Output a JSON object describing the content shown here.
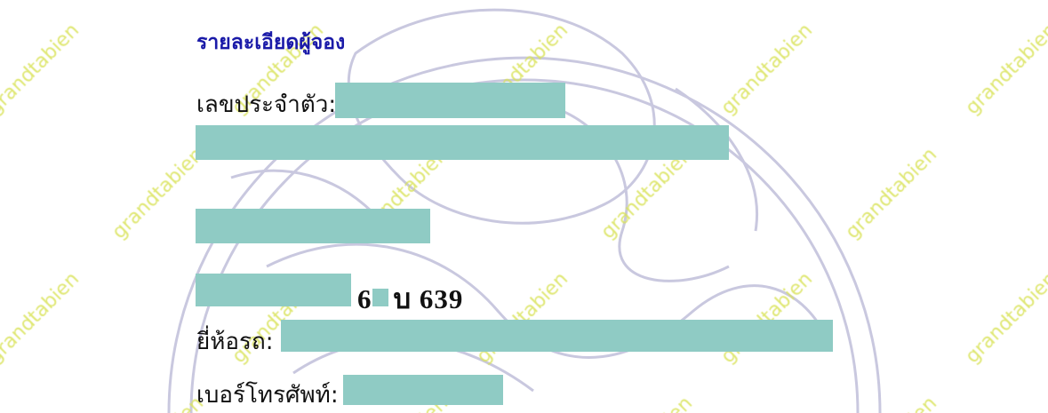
{
  "document": {
    "title": "รายละเอียดผู้จอง",
    "fields": {
      "id_label": "เลขประจำตัว:",
      "plate_visible": "6",
      "plate_rest": "บ 639",
      "brand_label": "ยี่ห้อรถ:",
      "phone_label": "เบอร์โทรศัพท์:"
    },
    "redaction_color": "#8fcbc4",
    "title_color": "#1a1aa8"
  },
  "watermark": {
    "text": "grandtabien",
    "color": "#d9e35a"
  }
}
